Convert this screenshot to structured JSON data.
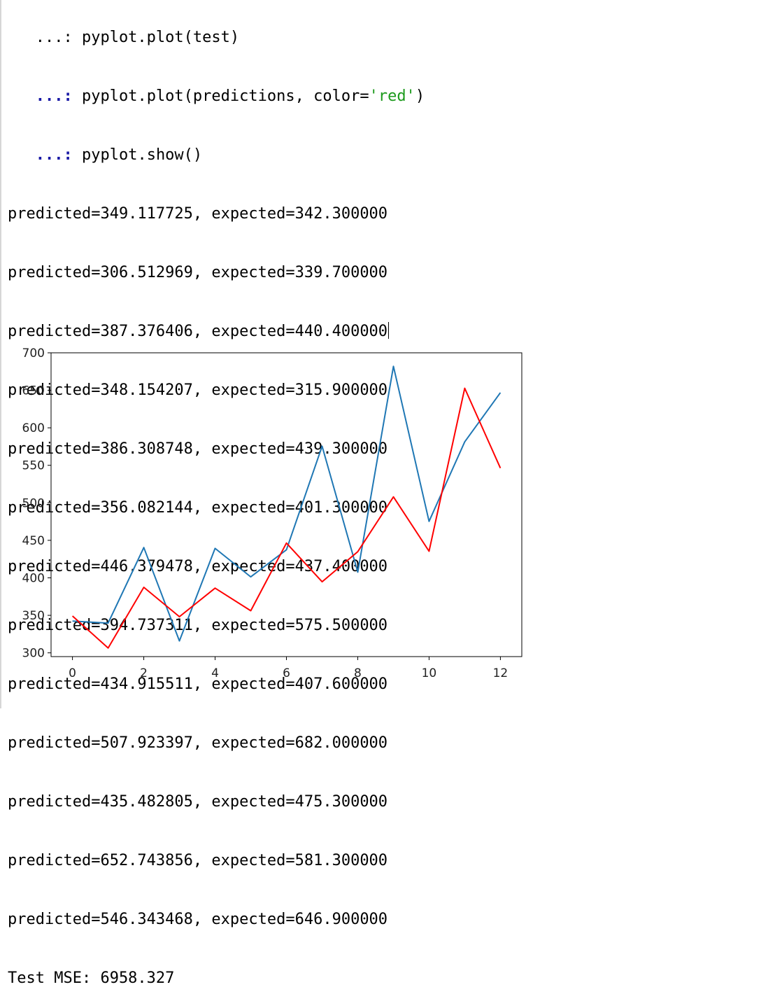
{
  "console": {
    "partial_top": "   ...: pyplot.plot(test)",
    "prompt": "...:",
    "cmd_plot_pre": " pyplot.plot(predictions, color=",
    "cmd_plot_str": "'red'",
    "cmd_plot_post": ")",
    "cmd_show": " pyplot.show()",
    "outputs": [
      "predicted=349.117725, expected=342.300000",
      "predicted=306.512969, expected=339.700000",
      "predicted=387.376406, expected=440.400000",
      "predicted=348.154207, expected=315.900000",
      "predicted=386.308748, expected=439.300000",
      "predicted=356.082144, expected=401.300000",
      "predicted=446.379478, expected=437.400000",
      "predicted=394.737311, expected=575.500000",
      "predicted=434.915511, expected=407.600000",
      "predicted=507.923397, expected=682.000000",
      "predicted=435.482805, expected=475.300000",
      "predicted=652.743856, expected=581.300000",
      "predicted=546.343468, expected=646.900000"
    ],
    "mse": "Test MSE: 6958.327"
  },
  "chart_data": {
    "type": "line",
    "x": [
      0,
      1,
      2,
      3,
      4,
      5,
      6,
      7,
      8,
      9,
      10,
      11,
      12
    ],
    "series": [
      {
        "color": "#1f77b4",
        "values": [
          342.3,
          339.7,
          440.4,
          315.9,
          439.3,
          401.3,
          437.4,
          575.5,
          407.6,
          682.0,
          475.3,
          581.3,
          646.9
        ]
      },
      {
        "color": "#ff0000",
        "values": [
          349.117725,
          306.512969,
          387.376406,
          348.154207,
          386.308748,
          356.082144,
          446.379478,
          394.737311,
          434.915511,
          507.923397,
          435.482805,
          652.743856,
          546.343468
        ]
      }
    ],
    "xlim": [
      -0.6,
      12.6
    ],
    "ylim": [
      295,
      700
    ],
    "xticks": [
      "0",
      "2",
      "4",
      "6",
      "8",
      "10",
      "12"
    ],
    "yticks": [
      "300",
      "350",
      "400",
      "450",
      "500",
      "550",
      "600",
      "650",
      "700"
    ],
    "grid": false
  }
}
